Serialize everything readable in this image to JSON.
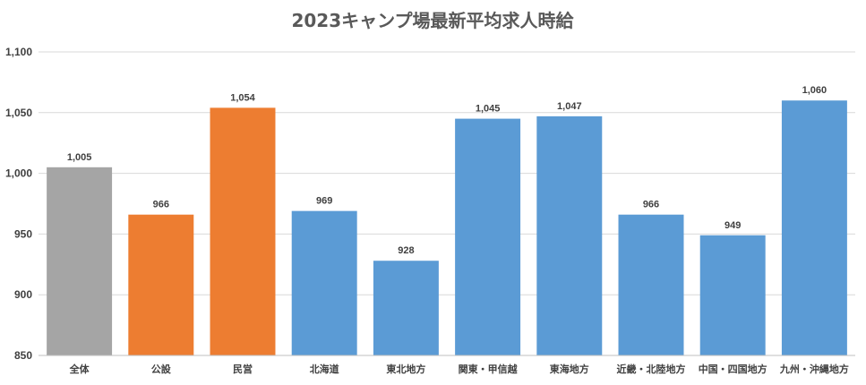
{
  "chart_data": {
    "type": "bar",
    "title": "2023キャンプ場最新平均求人時給",
    "xlabel": "",
    "ylabel": "",
    "ylim": [
      850,
      1100
    ],
    "yticks": [
      850,
      900,
      950,
      1000,
      1050,
      1100
    ],
    "ytick_labels": [
      "850",
      "900",
      "950",
      "1,000",
      "1,050",
      "1,100"
    ],
    "grid": true,
    "legend": "none",
    "categories": [
      "全体",
      "公設",
      "民営",
      "北海道",
      "東北地方",
      "関東・甲信越",
      "東海地方",
      "近畿・北陸地方",
      "中国・四国地方",
      "九州・沖縄地方"
    ],
    "values": [
      1005,
      966,
      1054,
      969,
      928,
      1045,
      1047,
      966,
      949,
      1060
    ],
    "value_labels": [
      "1,005",
      "966",
      "1,054",
      "969",
      "928",
      "1,045",
      "1,047",
      "966",
      "949",
      "1,060"
    ],
    "bar_colors": [
      "#a5a5a5",
      "#ed7d31",
      "#ed7d31",
      "#5b9bd5",
      "#5b9bd5",
      "#5b9bd5",
      "#5b9bd5",
      "#5b9bd5",
      "#5b9bd5",
      "#5b9bd5"
    ]
  }
}
